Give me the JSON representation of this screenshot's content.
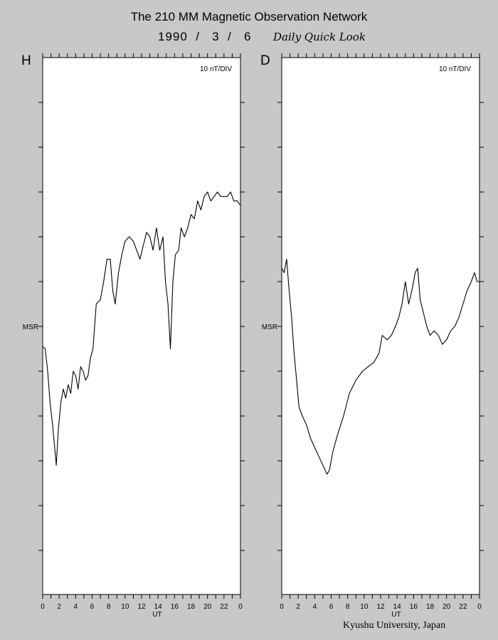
{
  "header": {
    "title": "The 210 MM Magnetic Observation Network",
    "date": "1990  /   3  /   6",
    "quick_look": "Daily Quick Look"
  },
  "footer": {
    "institution": "Kyushu University, Japan"
  },
  "chart_data": [
    {
      "type": "line",
      "panel": "H",
      "scale_label": "10 nT/DIV",
      "ref_label": "MSR",
      "xlabel": "UT",
      "xlim": [
        0,
        24
      ],
      "xticks": [
        "0",
        "2",
        "4",
        "6",
        "8",
        "10",
        "12",
        "14",
        "16",
        "18",
        "20",
        "22",
        "0"
      ],
      "ylim": [
        -60,
        55
      ],
      "yunit": "nT (0 = MSR baseline)",
      "x": [
        0,
        0.3,
        0.6,
        0.9,
        1.2,
        1.5,
        1.65,
        1.9,
        2.2,
        2.5,
        2.8,
        3.1,
        3.4,
        3.7,
        4.0,
        4.3,
        4.6,
        4.9,
        5.2,
        5.5,
        5.8,
        6.1,
        6.5,
        7.0,
        7.4,
        7.8,
        8.2,
        8.5,
        8.8,
        9.2,
        9.6,
        10.0,
        10.5,
        11.0,
        11.4,
        11.8,
        12.2,
        12.6,
        13.0,
        13.4,
        13.8,
        14.2,
        14.6,
        14.9,
        15.2,
        15.5,
        15.8,
        16.1,
        16.5,
        16.8,
        17.2,
        17.6,
        18.0,
        18.4,
        18.8,
        19.2,
        19.6,
        20.0,
        20.4,
        20.8,
        21.2,
        21.6,
        22.0,
        22.4,
        22.8,
        23.2,
        23.6,
        24.0
      ],
      "y": [
        -4.5,
        -5,
        -10,
        -17,
        -22,
        -28,
        -31,
        -23,
        -17,
        -14,
        -16,
        -13,
        -15,
        -10,
        -11,
        -14,
        -9,
        -10,
        -12,
        -11,
        -7,
        -5,
        5,
        6,
        10,
        15,
        15,
        8,
        5,
        12,
        16,
        19,
        20,
        19,
        17,
        15,
        18,
        21,
        20,
        17,
        22,
        17,
        20,
        10,
        5,
        -5,
        10,
        16,
        17,
        22,
        20,
        22,
        25,
        24,
        28,
        26,
        29,
        30,
        28,
        29,
        30,
        29,
        29,
        29,
        30,
        28,
        28,
        27
      ]
    },
    {
      "type": "line",
      "panel": "D",
      "scale_label": "10 nT/DIV",
      "ref_label": "MSR",
      "xlabel": "UT",
      "xlim": [
        0,
        24
      ],
      "xticks": [
        "0",
        "2",
        "4",
        "6",
        "8",
        "10",
        "12",
        "14",
        "16",
        "18",
        "20",
        "22",
        "0"
      ],
      "ylim": [
        -60,
        55
      ],
      "yunit": "nT (0 = MSR baseline)",
      "x": [
        0,
        0.3,
        0.6,
        0.9,
        1.2,
        1.5,
        1.8,
        2.1,
        2.5,
        3.0,
        3.5,
        4.0,
        4.5,
        5.0,
        5.5,
        5.8,
        6.2,
        6.8,
        7.5,
        8.2,
        9.0,
        9.8,
        10.5,
        11.2,
        11.8,
        12.2,
        12.8,
        13.3,
        13.8,
        14.2,
        14.6,
        15.0,
        15.4,
        15.8,
        16.2,
        16.5,
        16.8,
        17.2,
        17.6,
        18.0,
        18.5,
        19.0,
        19.5,
        20.0,
        20.5,
        21.0,
        21.5,
        22.0,
        22.5,
        23.0,
        23.4,
        23.7,
        24.0
      ],
      "y": [
        13,
        12,
        15,
        8,
        2,
        -6,
        -12,
        -18,
        -20,
        -22,
        -25,
        -27,
        -29,
        -31,
        -33,
        -32,
        -28,
        -24,
        -20,
        -15,
        -12,
        -10,
        -9,
        -8,
        -6,
        -2,
        -3,
        -2,
        0,
        2,
        5,
        10,
        5,
        8,
        12,
        13,
        6,
        3,
        0,
        -2,
        -1,
        -2,
        -4,
        -3,
        -1,
        0,
        2,
        5,
        8,
        10,
        12,
        10,
        10
      ]
    }
  ]
}
